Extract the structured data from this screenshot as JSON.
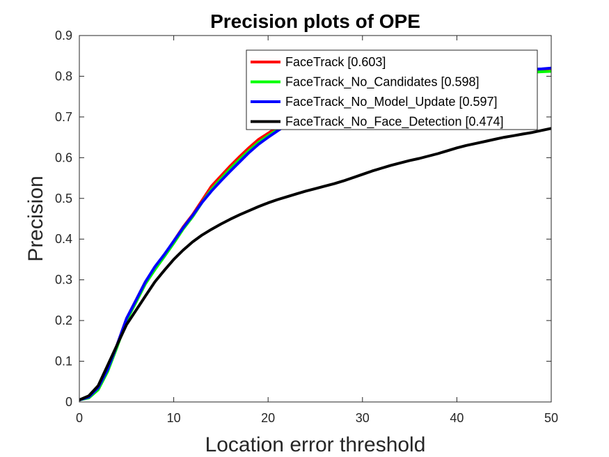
{
  "chart_data": {
    "type": "line",
    "title": "Precision plots of OPE",
    "xlabel": "Location error threshold",
    "ylabel": "Precision",
    "xlim": [
      0,
      50
    ],
    "ylim": [
      0,
      0.9
    ],
    "xticks": [
      0,
      10,
      20,
      30,
      40,
      50
    ],
    "yticks": [
      0,
      0.1,
      0.2,
      0.3,
      0.4,
      0.5,
      0.6,
      0.7,
      0.8,
      0.9
    ],
    "grid": false,
    "legend_position": "top-right",
    "x": [
      0,
      1,
      2,
      3,
      4,
      5,
      6,
      7,
      8,
      9,
      10,
      11,
      12,
      13,
      14,
      15,
      16,
      17,
      18,
      19,
      20,
      21,
      22,
      23,
      24,
      25,
      26,
      27,
      28,
      29,
      30,
      31,
      32,
      33,
      34,
      35,
      36,
      37,
      38,
      39,
      40,
      41,
      42,
      43,
      44,
      45,
      46,
      47,
      48,
      49,
      50
    ],
    "series": [
      {
        "name": "FaceTrack [0.603]",
        "color": "#ff0000",
        "values": [
          0.005,
          0.012,
          0.035,
          0.08,
          0.14,
          0.205,
          0.25,
          0.295,
          0.33,
          0.36,
          0.395,
          0.43,
          0.46,
          0.495,
          0.53,
          0.555,
          0.58,
          0.603,
          0.625,
          0.645,
          0.66,
          0.675,
          0.69,
          0.702,
          0.712,
          0.722,
          0.732,
          0.741,
          0.75,
          0.757,
          0.764,
          0.77,
          0.776,
          0.781,
          0.786,
          0.79,
          0.793,
          0.796,
          0.798,
          0.8,
          0.802,
          0.804,
          0.806,
          0.808,
          0.809,
          0.81,
          0.811,
          0.812,
          0.813,
          0.814,
          0.815
        ]
      },
      {
        "name": "FaceTrack_No_Candidates [0.598]",
        "color": "#00ff00",
        "values": [
          0.005,
          0.01,
          0.03,
          0.075,
          0.135,
          0.2,
          0.245,
          0.29,
          0.325,
          0.357,
          0.39,
          0.425,
          0.455,
          0.49,
          0.522,
          0.548,
          0.573,
          0.596,
          0.618,
          0.638,
          0.654,
          0.669,
          0.684,
          0.697,
          0.708,
          0.718,
          0.728,
          0.737,
          0.746,
          0.753,
          0.76,
          0.766,
          0.772,
          0.777,
          0.782,
          0.786,
          0.789,
          0.792,
          0.795,
          0.797,
          0.799,
          0.801,
          0.803,
          0.805,
          0.806,
          0.807,
          0.808,
          0.809,
          0.81,
          0.811,
          0.812
        ]
      },
      {
        "name": "FaceTrack_No_Model_Update [0.597]",
        "color": "#0000ff",
        "values": [
          0.005,
          0.012,
          0.035,
          0.08,
          0.14,
          0.205,
          0.25,
          0.295,
          0.332,
          0.362,
          0.395,
          0.428,
          0.458,
          0.49,
          0.518,
          0.543,
          0.567,
          0.59,
          0.613,
          0.633,
          0.65,
          0.666,
          0.681,
          0.694,
          0.705,
          0.716,
          0.726,
          0.735,
          0.744,
          0.751,
          0.758,
          0.765,
          0.771,
          0.776,
          0.781,
          0.786,
          0.79,
          0.794,
          0.797,
          0.8,
          0.803,
          0.805,
          0.807,
          0.809,
          0.811,
          0.813,
          0.815,
          0.816,
          0.817,
          0.818,
          0.82
        ]
      },
      {
        "name": "FaceTrack_No_Face_Detection [0.474]",
        "color": "#000000",
        "values": [
          0.005,
          0.015,
          0.04,
          0.09,
          0.14,
          0.19,
          0.225,
          0.26,
          0.295,
          0.323,
          0.35,
          0.373,
          0.393,
          0.41,
          0.424,
          0.437,
          0.449,
          0.46,
          0.47,
          0.48,
          0.489,
          0.497,
          0.504,
          0.511,
          0.518,
          0.524,
          0.53,
          0.536,
          0.543,
          0.551,
          0.559,
          0.567,
          0.574,
          0.581,
          0.587,
          0.593,
          0.598,
          0.604,
          0.61,
          0.617,
          0.624,
          0.63,
          0.635,
          0.64,
          0.645,
          0.65,
          0.654,
          0.658,
          0.662,
          0.667,
          0.672
        ]
      }
    ]
  }
}
